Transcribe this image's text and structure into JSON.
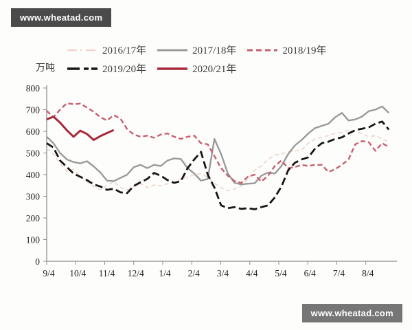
{
  "watermark_top": "www.wheatad.com",
  "watermark_bottom": "www.wheatad.com",
  "y_axis_unit": "万吨",
  "chart_data": {
    "type": "line",
    "title": "",
    "xlabel": "",
    "ylabel": "万吨",
    "ylim": [
      0,
      800
    ],
    "y_ticks": [
      0,
      100,
      200,
      300,
      400,
      500,
      600,
      700,
      800
    ],
    "x_tick_labels": [
      "9/4",
      "10/4",
      "11/4",
      "12/4",
      "1/4",
      "2/4",
      "3/4",
      "4/4",
      "5/4",
      "6/4",
      "7/4",
      "8/4"
    ],
    "x_unit": "weekly points starting 9/4",
    "grid": false,
    "legend_position": "top",
    "axis_color": "#8f8f8f",
    "series": [
      {
        "name": "2016/17年",
        "color": "#f0d3c8",
        "width": 1.6,
        "dash": "6 4",
        "legend_dash": "14 5 2 6",
        "values": [
          520,
          495,
          450,
          415,
          425,
          390,
          368,
          345,
          330,
          350,
          368,
          340,
          330,
          345,
          358,
          340,
          352,
          348,
          358,
          365,
          380,
          388,
          400,
          405,
          388,
          360,
          340,
          325,
          335,
          348,
          380,
          420,
          440,
          470,
          490,
          495,
          505,
          510,
          515,
          545,
          565,
          572,
          580,
          590,
          595,
          605,
          600,
          590,
          575,
          580,
          565,
          550
        ]
      },
      {
        "name": "2017/18年",
        "color": "#9a9a9a",
        "width": 2.4,
        "dash": null,
        "legend_dash": null,
        "values": [
          575,
          545,
          500,
          470,
          458,
          452,
          462,
          438,
          410,
          372,
          370,
          385,
          400,
          435,
          445,
          430,
          445,
          440,
          465,
          475,
          472,
          430,
          405,
          372,
          380,
          565,
          495,
          405,
          362,
          355,
          358,
          360,
          395,
          410,
          405,
          440,
          495,
          535,
          560,
          590,
          615,
          625,
          635,
          665,
          685,
          650,
          655,
          668,
          693,
          700,
          715,
          685
        ]
      },
      {
        "name": "2018/19年",
        "color": "#c65f6f",
        "width": 2.4,
        "dash": "7 4",
        "legend_dash": "8 5",
        "values": [
          695,
          665,
          700,
          730,
          725,
          728,
          710,
          690,
          665,
          650,
          675,
          658,
          610,
          585,
          575,
          580,
          570,
          585,
          590,
          575,
          565,
          575,
          580,
          545,
          540,
          485,
          430,
          395,
          370,
          362,
          390,
          400,
          368,
          395,
          440,
          465,
          430,
          435,
          445,
          440,
          445,
          445,
          412,
          425,
          445,
          470,
          540,
          555,
          550,
          510,
          545,
          528
        ]
      },
      {
        "name": "2019/20年",
        "color": "#161616",
        "width": 2.8,
        "dash": "11 5",
        "legend_dash": "18 6 7 4",
        "values": [
          545,
          525,
          465,
          435,
          405,
          390,
          375,
          355,
          345,
          330,
          335,
          318,
          315,
          348,
          365,
          380,
          408,
          395,
          375,
          362,
          370,
          430,
          470,
          505,
          400,
          340,
          258,
          245,
          250,
          242,
          245,
          240,
          250,
          258,
          295,
          345,
          420,
          455,
          470,
          480,
          520,
          545,
          552,
          565,
          572,
          590,
          605,
          612,
          618,
          635,
          645,
          608
        ]
      },
      {
        "name": "2020/21年",
        "color": "#a8293a",
        "width": 3,
        "dash": null,
        "legend_dash": null,
        "values": [
          655,
          668,
          640,
          605,
          575,
          603,
          588,
          560,
          578,
          592,
          606
        ]
      }
    ]
  }
}
